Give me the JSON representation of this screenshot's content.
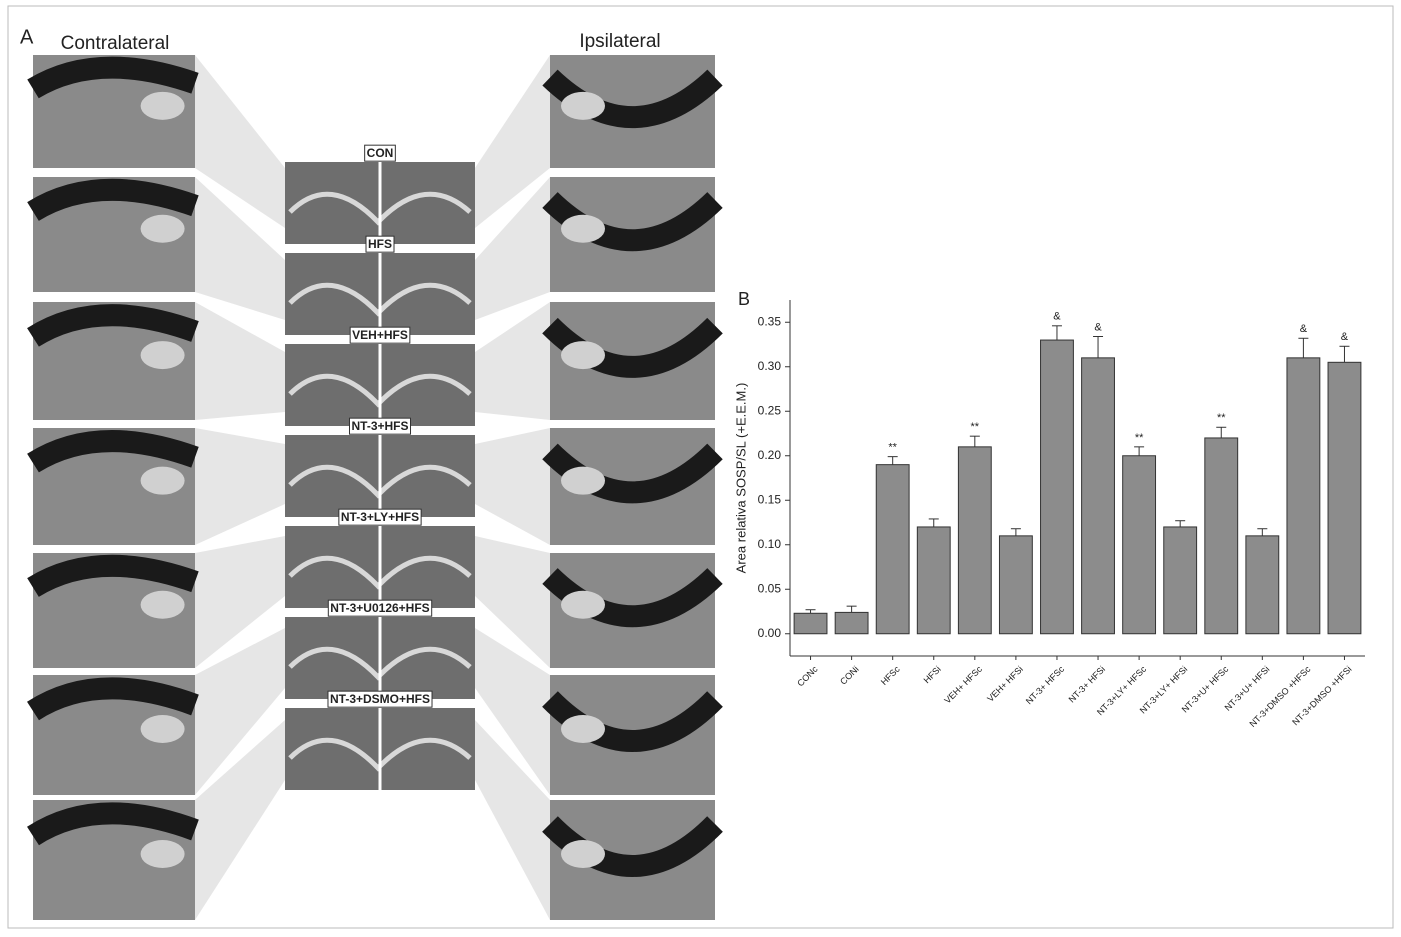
{
  "panel_a": {
    "label": "A",
    "left_title": "Contralateral",
    "right_title": "Ipsilateral",
    "sections": [
      "CON",
      "HFS",
      "VEH+HFS",
      "NT-3+HFS",
      "NT-3+LY+HFS",
      "NT-3+U0126+HFS",
      "NT-3+DSMO+HFS"
    ]
  },
  "chart_data": {
    "type": "bar",
    "panel_label": "B",
    "y_label": "Area relativa SOSP/SL (+E.E.M.)",
    "categories": [
      "CONc",
      "CONi",
      "HFSc",
      "HFSi",
      "VEH+ HFSc",
      "VEH+ HFSi",
      "NT-3+ HFSc",
      "NT-3+ HFSi",
      "NT-3+LY+ HFSc",
      "NT-3+LY+ HFSi",
      "NT-3+U+ HFSc",
      "NT-3+U+ HFSi",
      "NT-3+DMSO +HFSc",
      "NT-3+DMSO +HFSi"
    ],
    "values": [
      0.023,
      0.024,
      0.19,
      0.12,
      0.21,
      0.11,
      0.33,
      0.31,
      0.2,
      0.12,
      0.22,
      0.11,
      0.31,
      0.305
    ],
    "errors": [
      0.004,
      0.007,
      0.009,
      0.009,
      0.012,
      0.008,
      0.016,
      0.024,
      0.01,
      0.007,
      0.012,
      0.008,
      0.022,
      0.018
    ],
    "annotations": [
      null,
      null,
      "**",
      null,
      "**",
      null,
      "&",
      "&",
      "**",
      null,
      "**",
      null,
      "&",
      "&"
    ],
    "color": "#8c8c8c",
    "ylim": [
      -0.025,
      0.375
    ],
    "yticks": [
      {
        "value": 0,
        "label": "0.00"
      },
      {
        "value": 0.05,
        "label": "0.05"
      },
      {
        "value": 0.1,
        "label": "0.10"
      },
      {
        "value": 0.15,
        "label": "0.15"
      },
      {
        "value": 0.2,
        "label": "0.20"
      },
      {
        "value": 0.25,
        "label": "0.25"
      },
      {
        "value": 0.3,
        "label": "0.30"
      },
      {
        "value": 0.35,
        "label": "0.35"
      }
    ]
  }
}
